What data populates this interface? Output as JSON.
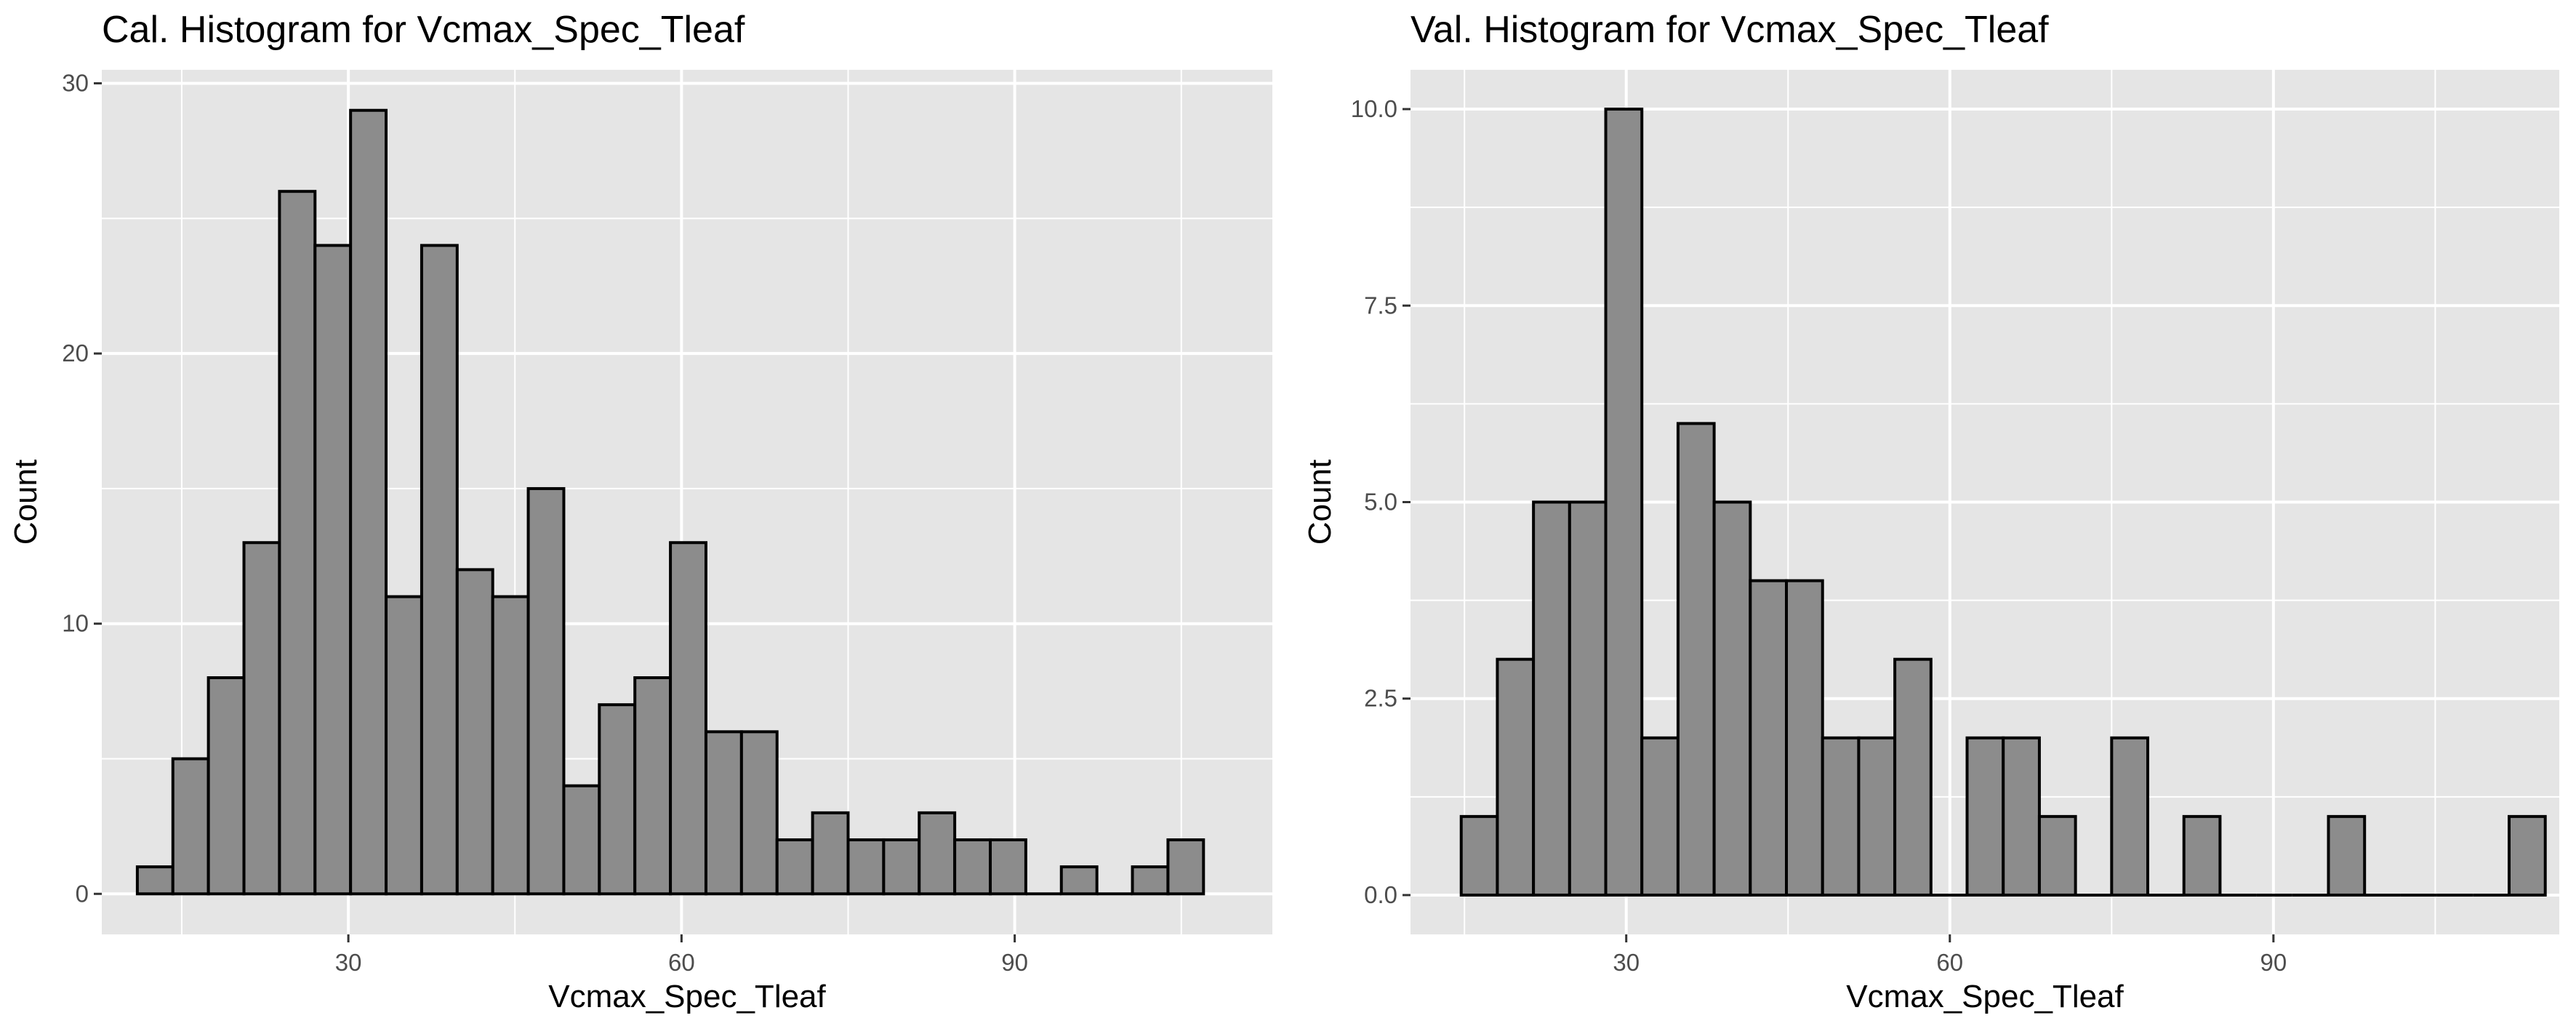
{
  "colors": {
    "panel_background": "#e5e5e5",
    "grid": "#ffffff",
    "bar_fill": "#8c8c8c",
    "bar_outline": "#000000",
    "tick_text": "#4d4d4d",
    "tick_mark": "#333333"
  },
  "chart_data": [
    {
      "type": "bar",
      "title": "Cal. Histogram for Vcmax_Spec_Tleaf",
      "xlabel": "Vcmax_Spec_Tleaf",
      "ylabel": "Count",
      "x_ticks": [
        "30",
        "60",
        "90"
      ],
      "y_ticks": [
        "0",
        "10",
        "20",
        "30"
      ],
      "xlim": [
        7.8,
        113.2
      ],
      "ylim": [
        -1.5,
        30.5
      ],
      "grid": true,
      "bins_start": 11,
      "bin_width": 3.2,
      "values": [
        1,
        5,
        8,
        13,
        26,
        24,
        29,
        11,
        24,
        12,
        11,
        15,
        4,
        7,
        8,
        13,
        6,
        6,
        2,
        3,
        2,
        2,
        3,
        2,
        2,
        0,
        1,
        0,
        1,
        2
      ]
    },
    {
      "type": "bar",
      "title": "Val. Histogram for Vcmax_Spec_Tleaf",
      "xlabel": "Vcmax_Spec_Tleaf",
      "ylabel": "Count",
      "x_ticks": [
        "30",
        "60",
        "90"
      ],
      "y_ticks": [
        "0.0",
        "2.5",
        "5.0",
        "7.5",
        "10.0"
      ],
      "xlim": [
        10,
        116.5
      ],
      "ylim": [
        -0.5,
        10.5
      ],
      "grid": true,
      "bins_start": 14.7,
      "bin_width": 3.35,
      "values": [
        1,
        3,
        5,
        5,
        10,
        2,
        6,
        5,
        4,
        4,
        2,
        2,
        3,
        0,
        2,
        2,
        1,
        0,
        2,
        0,
        1,
        0,
        0,
        0,
        1,
        0,
        0,
        0,
        0,
        1
      ]
    }
  ]
}
